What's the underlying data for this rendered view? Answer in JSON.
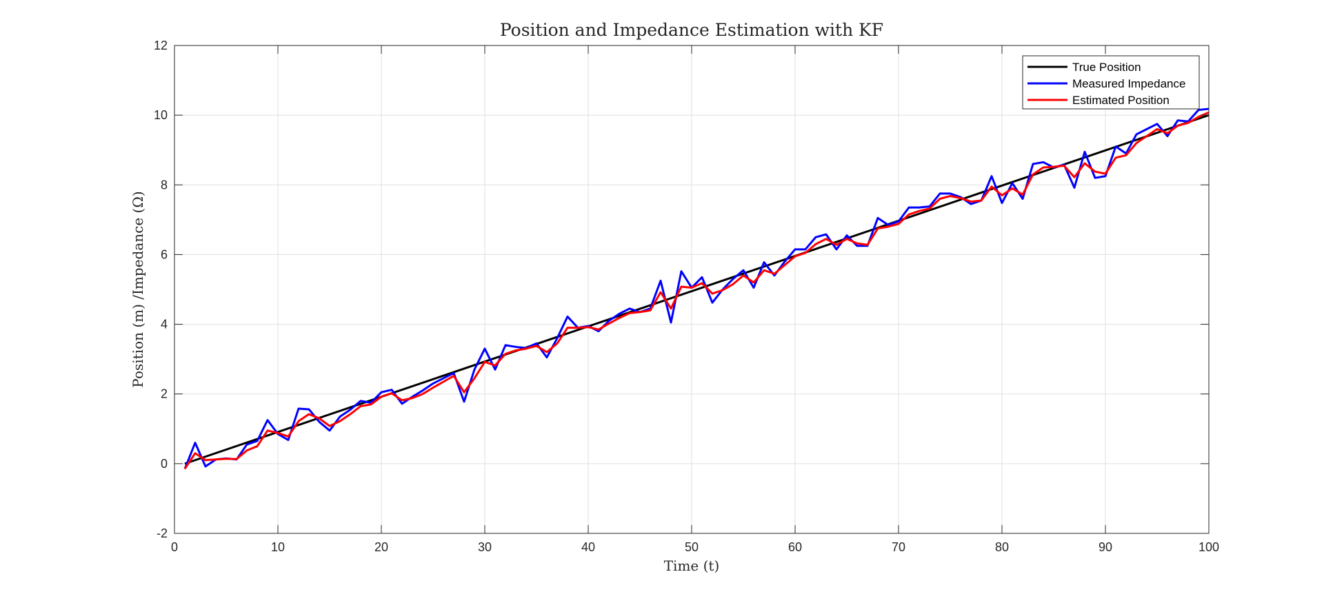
{
  "chart_data": {
    "type": "line",
    "title": "Position and Impedance Estimation with KF",
    "xlabel": "Time (t)",
    "ylabel": "Position (m) /Impedance (Ω)",
    "xlim": [
      0,
      100
    ],
    "ylim": [
      -2,
      12
    ],
    "xticks": [
      0,
      10,
      20,
      30,
      40,
      50,
      60,
      70,
      80,
      90,
      100
    ],
    "yticks": [
      -2,
      0,
      2,
      4,
      6,
      8,
      10,
      12
    ],
    "grid": true,
    "legend_position": "top-right",
    "series": [
      {
        "name": "True Position",
        "color": "#000000",
        "x": [
          1,
          100
        ],
        "y": [
          0,
          10
        ]
      },
      {
        "name": "Measured Impedance",
        "color": "#0000ff",
        "x": [
          1,
          2,
          3,
          4,
          5,
          6,
          7,
          8,
          9,
          10,
          11,
          12,
          13,
          14,
          15,
          16,
          17,
          18,
          19,
          20,
          21,
          22,
          23,
          24,
          25,
          26,
          27,
          28,
          29,
          30,
          31,
          32,
          33,
          34,
          35,
          36,
          37,
          38,
          39,
          40,
          41,
          42,
          43,
          44,
          45,
          46,
          47,
          48,
          49,
          50,
          51,
          52,
          53,
          54,
          55,
          56,
          57,
          58,
          59,
          60,
          61,
          62,
          63,
          64,
          65,
          66,
          67,
          68,
          69,
          70,
          71,
          72,
          73,
          74,
          75,
          76,
          77,
          78,
          79,
          80,
          81,
          82,
          83,
          84,
          85,
          86,
          87,
          88,
          89,
          90,
          91,
          92,
          93,
          94,
          95,
          96,
          97,
          98,
          99,
          100
        ],
        "y": [
          -0.15,
          0.6,
          -0.08,
          0.12,
          0.15,
          0.12,
          0.55,
          0.65,
          1.25,
          0.85,
          0.68,
          1.58,
          1.56,
          1.2,
          0.95,
          1.35,
          1.55,
          1.8,
          1.75,
          2.05,
          2.12,
          1.72,
          1.92,
          2.1,
          2.3,
          2.45,
          2.6,
          1.78,
          2.7,
          3.3,
          2.7,
          3.4,
          3.35,
          3.32,
          3.45,
          3.05,
          3.6,
          4.22,
          3.9,
          3.95,
          3.8,
          4.1,
          4.3,
          4.45,
          4.35,
          4.45,
          5.25,
          4.05,
          5.52,
          5.05,
          5.35,
          4.62,
          5.0,
          5.3,
          5.55,
          5.05,
          5.78,
          5.4,
          5.8,
          6.15,
          6.15,
          6.5,
          6.58,
          6.15,
          6.55,
          6.25,
          6.25,
          7.05,
          6.85,
          6.95,
          7.35,
          7.35,
          7.38,
          7.75,
          7.75,
          7.65,
          7.45,
          7.55,
          8.25,
          7.48,
          8.05,
          7.6,
          8.6,
          8.65,
          8.5,
          8.58,
          7.92,
          8.95,
          8.2,
          8.25,
          9.1,
          8.9,
          9.45,
          9.6,
          9.75,
          9.4,
          9.85,
          9.82,
          10.15,
          10.18
        ]
      },
      {
        "name": "Estimated Position",
        "color": "#ff0000",
        "x": [
          1,
          2,
          3,
          4,
          5,
          6,
          7,
          8,
          9,
          10,
          11,
          12,
          13,
          14,
          15,
          16,
          17,
          18,
          19,
          20,
          21,
          22,
          23,
          24,
          25,
          26,
          27,
          28,
          29,
          30,
          31,
          32,
          33,
          34,
          35,
          36,
          37,
          38,
          39,
          40,
          41,
          42,
          43,
          44,
          45,
          46,
          47,
          48,
          49,
          50,
          51,
          52,
          53,
          54,
          55,
          56,
          57,
          58,
          59,
          60,
          61,
          62,
          63,
          64,
          65,
          66,
          67,
          68,
          69,
          70,
          71,
          72,
          73,
          74,
          75,
          76,
          77,
          78,
          79,
          80,
          81,
          82,
          83,
          84,
          85,
          86,
          87,
          88,
          89,
          90,
          91,
          92,
          93,
          94,
          95,
          96,
          97,
          98,
          99,
          100
        ],
        "y": [
          -0.15,
          0.3,
          0.1,
          0.12,
          0.14,
          0.13,
          0.38,
          0.5,
          0.95,
          0.88,
          0.78,
          1.22,
          1.42,
          1.3,
          1.08,
          1.22,
          1.42,
          1.65,
          1.7,
          1.92,
          2.02,
          1.82,
          1.88,
          2.0,
          2.18,
          2.35,
          2.52,
          2.05,
          2.45,
          2.92,
          2.82,
          3.15,
          3.25,
          3.3,
          3.38,
          3.2,
          3.45,
          3.9,
          3.9,
          3.92,
          3.85,
          4.02,
          4.18,
          4.32,
          4.35,
          4.4,
          4.92,
          4.45,
          5.08,
          5.05,
          5.18,
          4.88,
          4.98,
          5.15,
          5.4,
          5.2,
          5.55,
          5.45,
          5.7,
          5.95,
          6.05,
          6.3,
          6.45,
          6.28,
          6.45,
          6.32,
          6.28,
          6.75,
          6.8,
          6.88,
          7.15,
          7.25,
          7.32,
          7.6,
          7.68,
          7.62,
          7.52,
          7.55,
          7.95,
          7.7,
          7.9,
          7.72,
          8.3,
          8.5,
          8.52,
          8.55,
          8.22,
          8.62,
          8.38,
          8.32,
          8.78,
          8.85,
          9.2,
          9.4,
          9.6,
          9.48,
          9.7,
          9.78,
          9.95,
          10.08
        ]
      }
    ]
  }
}
